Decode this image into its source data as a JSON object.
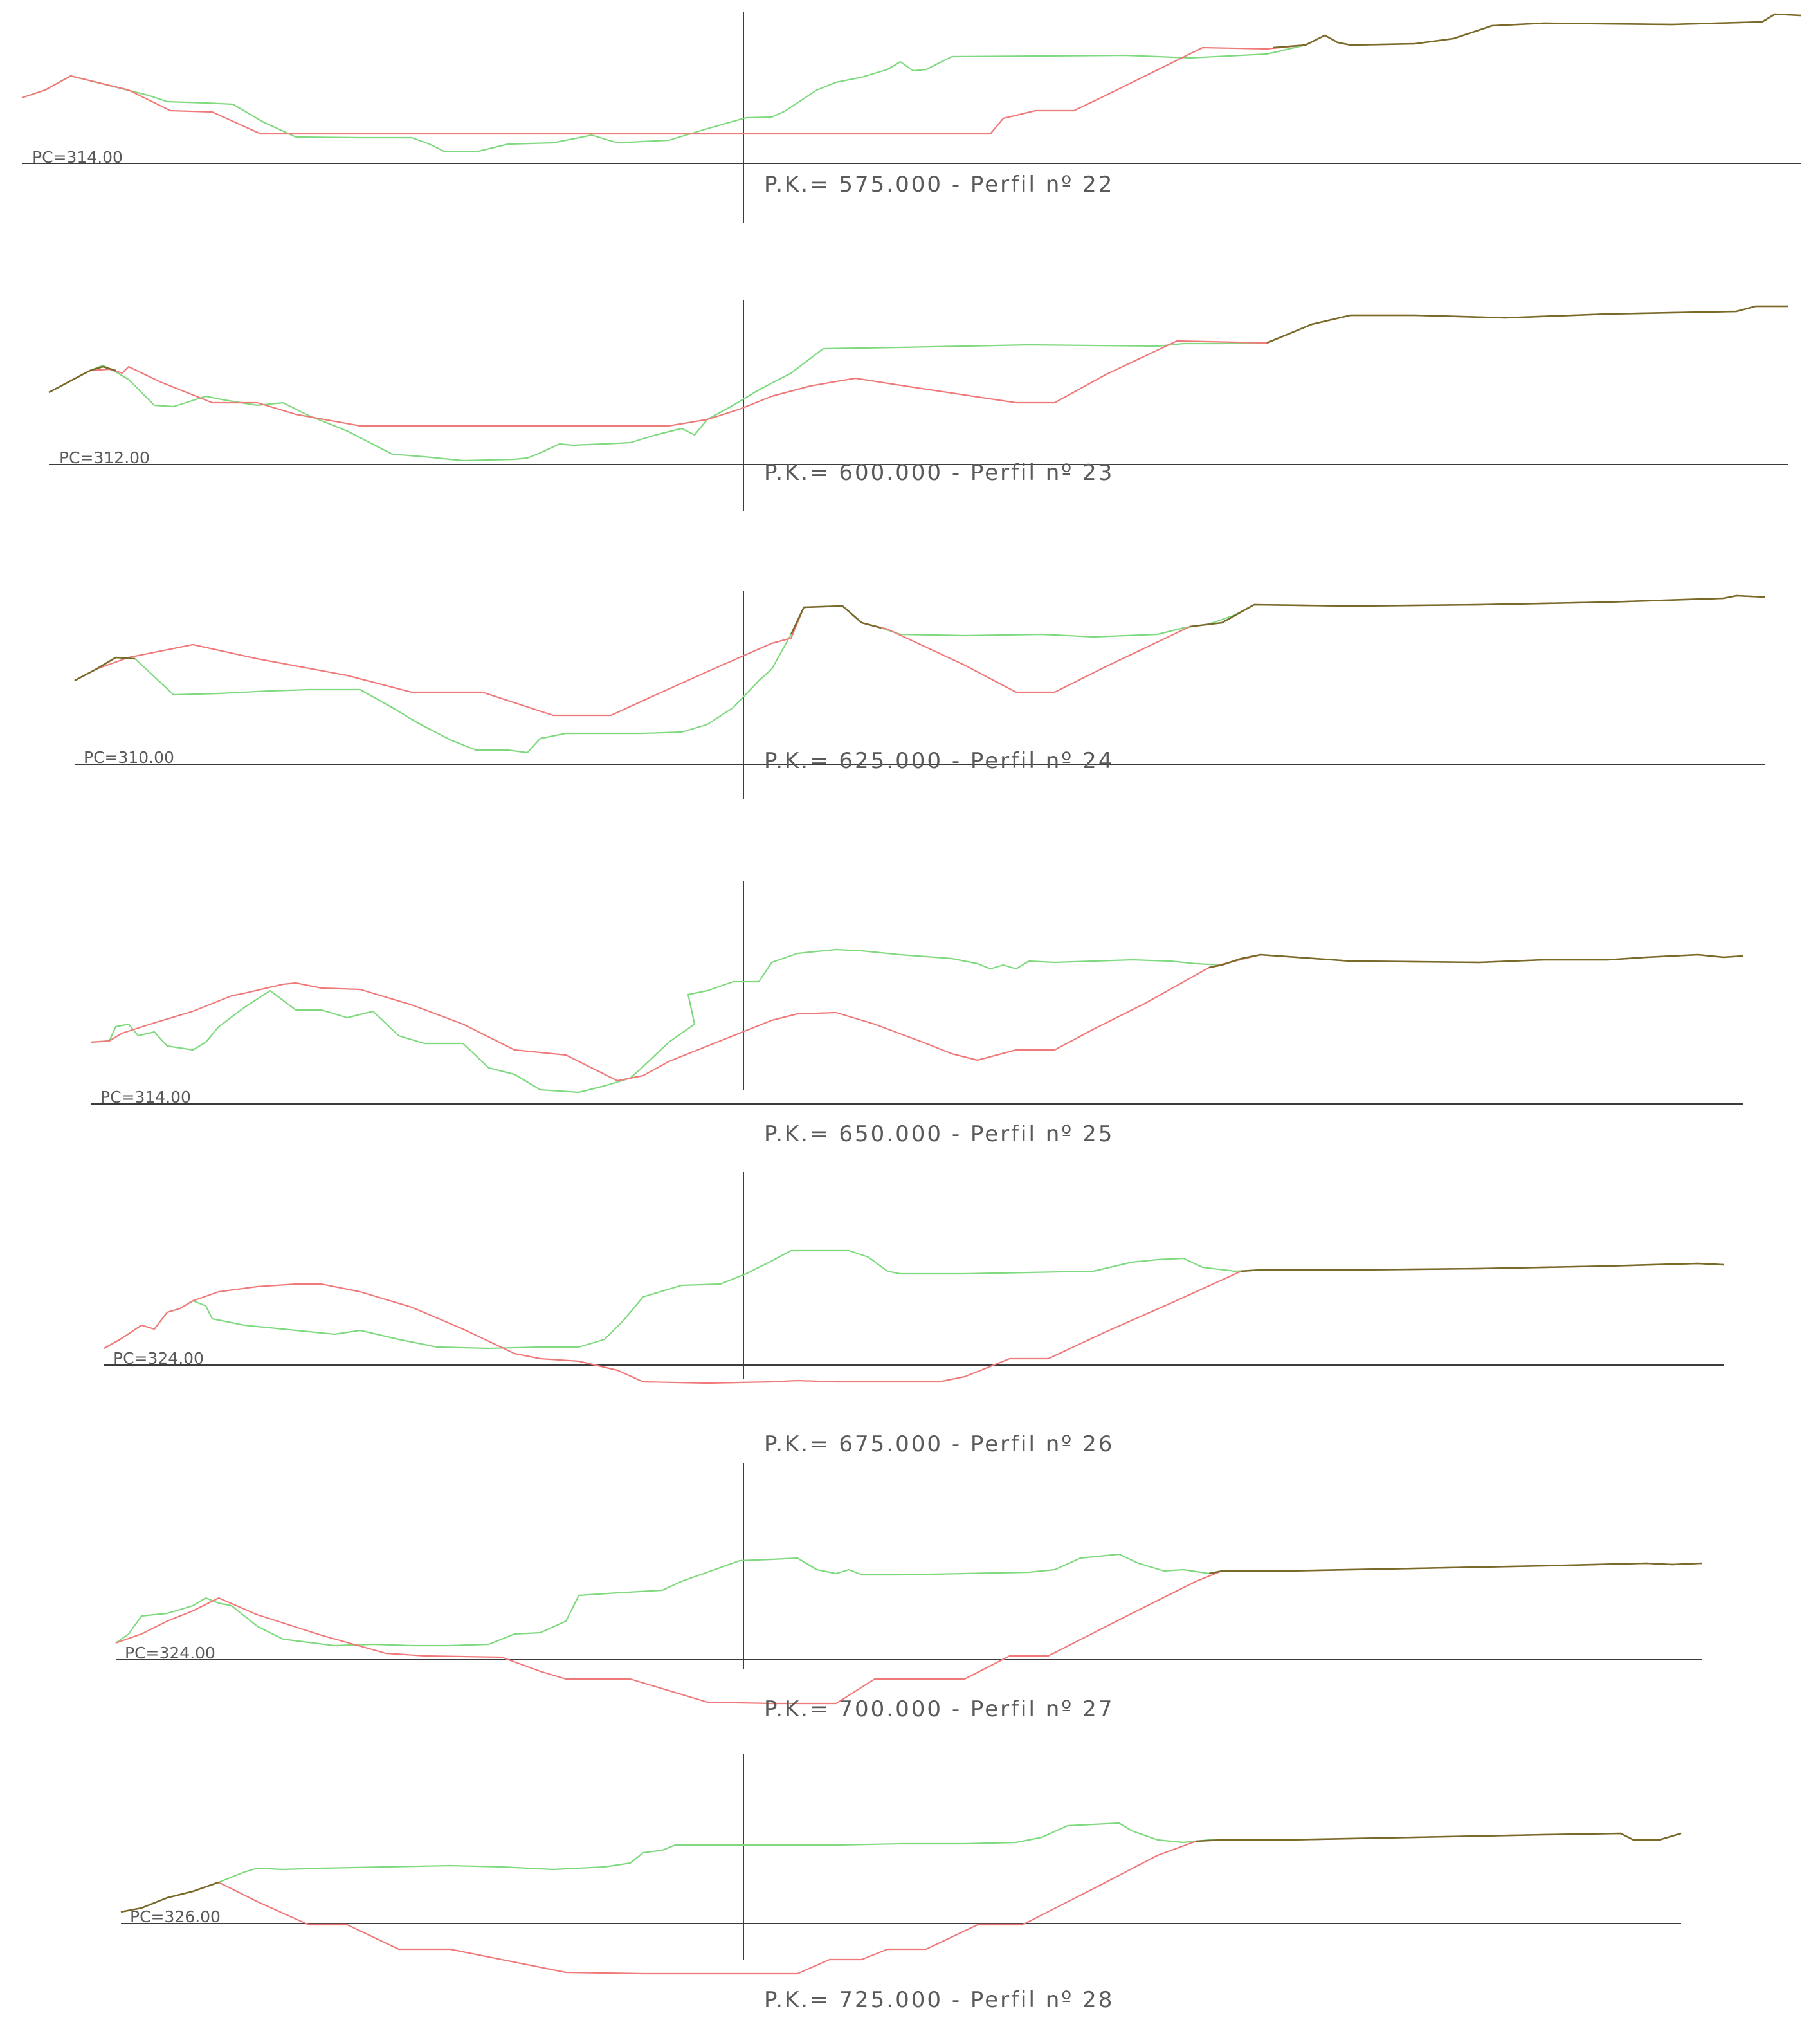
{
  "colors": {
    "terrain": "#7fd97f",
    "design": "#f07a7a",
    "shared": "#7a6a2a",
    "axis": "#3c3c3c",
    "text": "#5a5a5a"
  },
  "profiles": [
    {
      "label": "P.K.=   575.000  -  Perfil  nº  22",
      "pc": "PC=314.00"
    },
    {
      "label": "P.K.=   600.000  -  Perfil  nº  23",
      "pc": "PC=312.00"
    },
    {
      "label": "P.K.=   625.000  -  Perfil  nº  24",
      "pc": "PC=310.00"
    },
    {
      "label": "P.K.=   650.000  -  Perfil  nº  25",
      "pc": "PC=314.00"
    },
    {
      "label": "P.K.=   675.000  -  Perfil  nº  26",
      "pc": "PC=324.00"
    },
    {
      "label": "P.K.=   700.000  -  Perfil  nº  27",
      "pc": "PC=324.00"
    },
    {
      "label": "P.K.=   725.000  -  Perfil  nº  28",
      "pc": "PC=326.00"
    }
  ]
}
